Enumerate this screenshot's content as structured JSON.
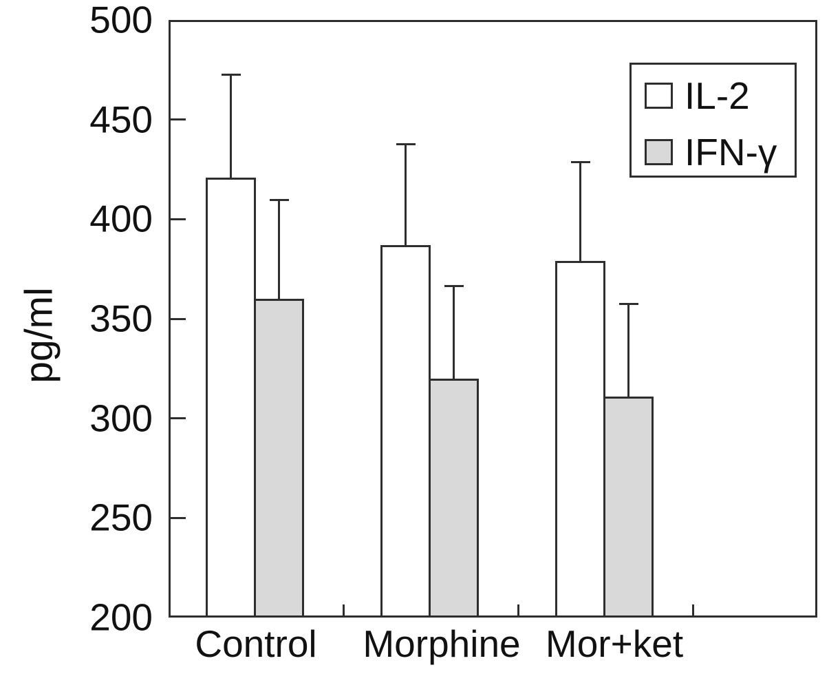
{
  "figure": {
    "background": "#ffffff",
    "line_color": "#2e2e2e",
    "text_color": "#111111"
  },
  "chart_data": {
    "type": "bar",
    "title": "",
    "xlabel": "",
    "ylabel": "pg/ml",
    "categories": [
      "Control",
      "Morphine",
      "Mor+ket"
    ],
    "series": [
      {
        "name": "IL-2",
        "fill": "#ffffff",
        "values": [
          421,
          387,
          379
        ],
        "errors": [
          51,
          50,
          49
        ]
      },
      {
        "name": "IFN-γ",
        "fill": "#d9d9d9",
        "values": [
          360,
          320,
          311
        ],
        "errors": [
          49,
          46,
          46
        ]
      }
    ],
    "ylim": [
      200,
      500
    ],
    "yticks": [
      200,
      250,
      300,
      350,
      400,
      450,
      500
    ],
    "grid": false,
    "legend_position": "top-right",
    "error_bars": "upper-only"
  }
}
